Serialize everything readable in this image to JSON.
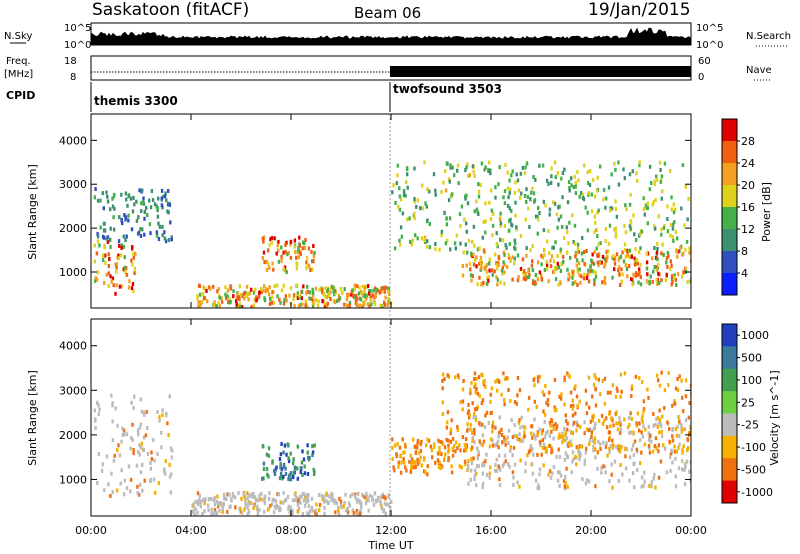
{
  "header": {
    "station": "Saskatoon (fitACF)",
    "beam": "Beam 06",
    "date": "19/Jan/2015"
  },
  "strip_labels": {
    "nsky": "N.Sky",
    "nsearch": "N.Search",
    "freq_line1": "Freq.",
    "freq_line2": "[MHz]",
    "nave": "Nave",
    "cpid": "CPID"
  },
  "noise_axis": {
    "top": "10^5",
    "bottom": "10^0"
  },
  "freq_axis": {
    "left_ticks": [
      "18",
      "8"
    ],
    "right_ticks": [
      "60",
      "0"
    ]
  },
  "cpid_modes": [
    {
      "name": "themis 3300",
      "start_hour": 0
    },
    {
      "name": "twofsound 3503",
      "start_hour": 12
    }
  ],
  "chart_data": [
    {
      "type": "heatmap",
      "title": "",
      "xlabel": "",
      "ylabel": "Slant Range [km]",
      "xlim": [
        0,
        24
      ],
      "ylim": [
        180,
        4600
      ],
      "yticks": [
        1000,
        2000,
        3000,
        4000
      ],
      "colorbar": {
        "label": "Power [dB]",
        "ticks": [
          "4",
          "8",
          "12",
          "16",
          "20",
          "24",
          "28"
        ],
        "colors": [
          "#0a1eff",
          "#2f4fbf",
          "#3c9070",
          "#43b04a",
          "#e0d21c",
          "#f3a020",
          "#f06010",
          "#e00000"
        ],
        "range": [
          0,
          30
        ]
      },
      "features": [
        {
          "hours": [
            0.1,
            1.8
          ],
          "range_km": [
            500,
            1700
          ],
          "peak_db": 28
        },
        {
          "hours": [
            0.1,
            3.2
          ],
          "range_km": [
            1700,
            2900
          ],
          "peak_db": 12
        },
        {
          "hours": [
            6.8,
            8.9
          ],
          "range_km": [
            1000,
            1800
          ],
          "peak_db": 28
        },
        {
          "hours": [
            4.2,
            12.0
          ],
          "range_km": [
            200,
            700
          ],
          "peak_db": 26
        },
        {
          "hours": [
            14.8,
            24.0
          ],
          "range_km": [
            700,
            1500
          ],
          "peak_db": 26
        },
        {
          "hours": [
            12.0,
            24.0
          ],
          "range_km": [
            1500,
            3500
          ],
          "peak_db": 18
        }
      ]
    },
    {
      "type": "heatmap",
      "title": "",
      "xlabel": "Time UT",
      "ylabel": "Slant Range [km]",
      "xlim": [
        0,
        24
      ],
      "xticks": [
        "00:00",
        "04:00",
        "08:00",
        "12:00",
        "16:00",
        "20:00",
        "00:00"
      ],
      "ylim": [
        180,
        4600
      ],
      "yticks": [
        1000,
        2000,
        3000,
        4000
      ],
      "colorbar": {
        "label": "Velocity [m s^-1]",
        "ticks": [
          "1000",
          "500",
          "100",
          "25",
          "-25",
          "-100",
          "-500",
          "-1000"
        ],
        "colors": [
          "#2040c0",
          "#3a7a9a",
          "#40a050",
          "#6cd040",
          "#bcbcbc",
          "#f5b000",
          "#f07010",
          "#e00000"
        ],
        "range": [
          -1000,
          1000
        ]
      },
      "features": [
        {
          "hours": [
            0.1,
            3.2
          ],
          "range_km": [
            600,
            2900
          ],
          "velocity": "ground scatter / -100"
        },
        {
          "hours": [
            6.8,
            8.9
          ],
          "range_km": [
            1000,
            1800
          ],
          "velocity": 500
        },
        {
          "hours": [
            4.0,
            12.0
          ],
          "range_km": [
            200,
            700
          ],
          "velocity": "ground scatter"
        },
        {
          "hours": [
            12.0,
            15.2
          ],
          "range_km": [
            1100,
            1900
          ],
          "velocity": -200
        },
        {
          "hours": [
            15.0,
            24.0
          ],
          "range_km": [
            800,
            2400
          ],
          "velocity": "ground scatter"
        },
        {
          "hours": [
            14.0,
            24.0
          ],
          "range_km": [
            1600,
            3400
          ],
          "velocity": -150
        }
      ]
    }
  ]
}
